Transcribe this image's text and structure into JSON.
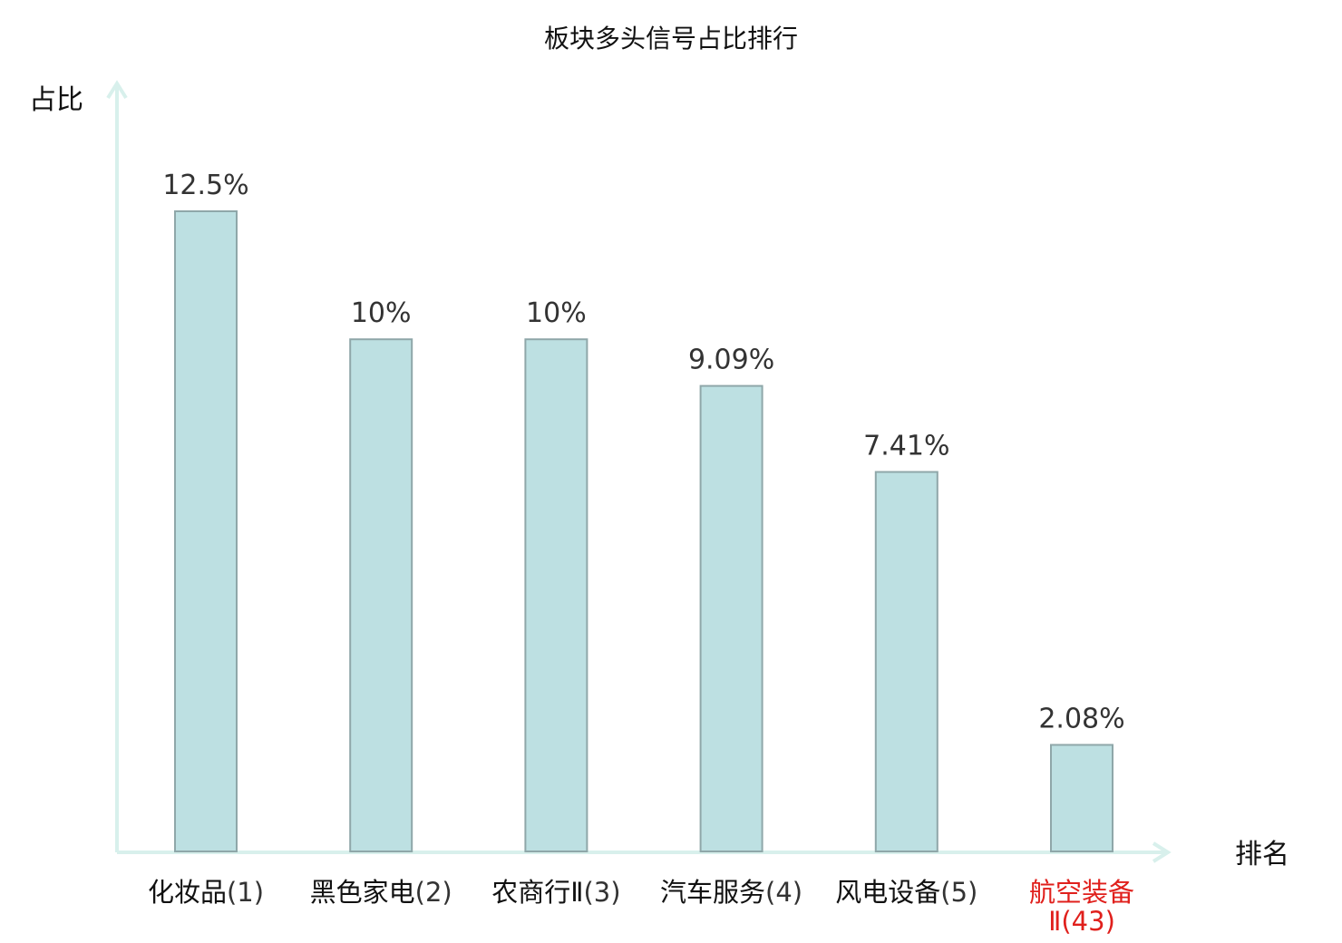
{
  "chart_data": {
    "type": "bar",
    "title": "板块多头信号占比排行",
    "ylabel": "占比",
    "xlabel": "排名",
    "categories": [
      {
        "name": "化妆品",
        "rank": "(1)",
        "highlight": false
      },
      {
        "name": "黑色家电",
        "rank": "(2)",
        "highlight": false
      },
      {
        "name": "农商行Ⅱ",
        "rank": "(3)",
        "highlight": false
      },
      {
        "name": "汽车服务",
        "rank": "(4)",
        "highlight": false
      },
      {
        "name": "风电设备",
        "rank": "(5)",
        "highlight": false
      },
      {
        "name": "航空装备",
        "rank": "Ⅱ(43)",
        "highlight": true
      }
    ],
    "values": [
      12.5,
      10,
      10,
      9.09,
      7.41,
      2.08
    ],
    "value_labels": [
      "12.5%",
      "10%",
      "10%",
      "9.09%",
      "7.41%",
      "2.08%"
    ],
    "ylim": [
      0,
      12.5
    ],
    "grid": false,
    "legend": "none",
    "colors": {
      "bar_fill": "#bde0e2",
      "bar_stroke": "#8fa7a9",
      "axis": "#d8f0ec",
      "highlight_text": "#e0201c",
      "normal_text": "#111111"
    }
  }
}
